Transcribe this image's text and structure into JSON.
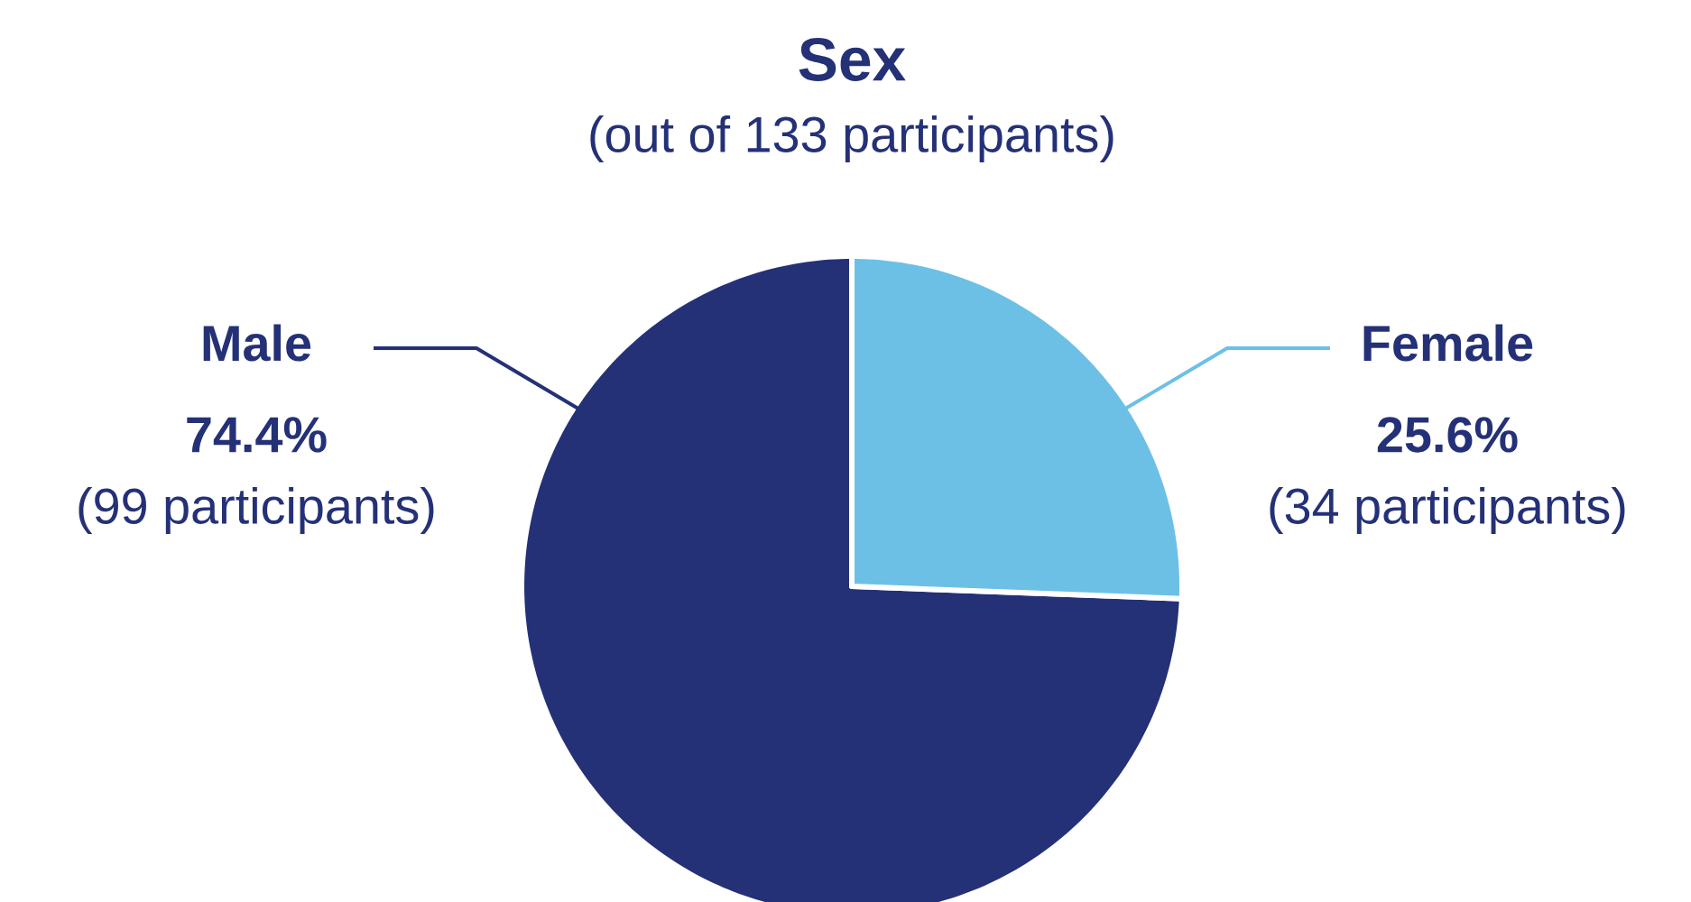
{
  "chart_data": {
    "type": "pie",
    "title": "Sex",
    "subtitle": "(out of 133 participants)",
    "categories": [
      "Male",
      "Female"
    ],
    "values": [
      74.4,
      25.6
    ],
    "colors": [
      "#243177",
      "#6cc0e6"
    ],
    "value_labels": [
      "74.4%",
      "25.6%"
    ],
    "annotations": [
      "(99 participants)",
      "(34 participants)"
    ]
  }
}
